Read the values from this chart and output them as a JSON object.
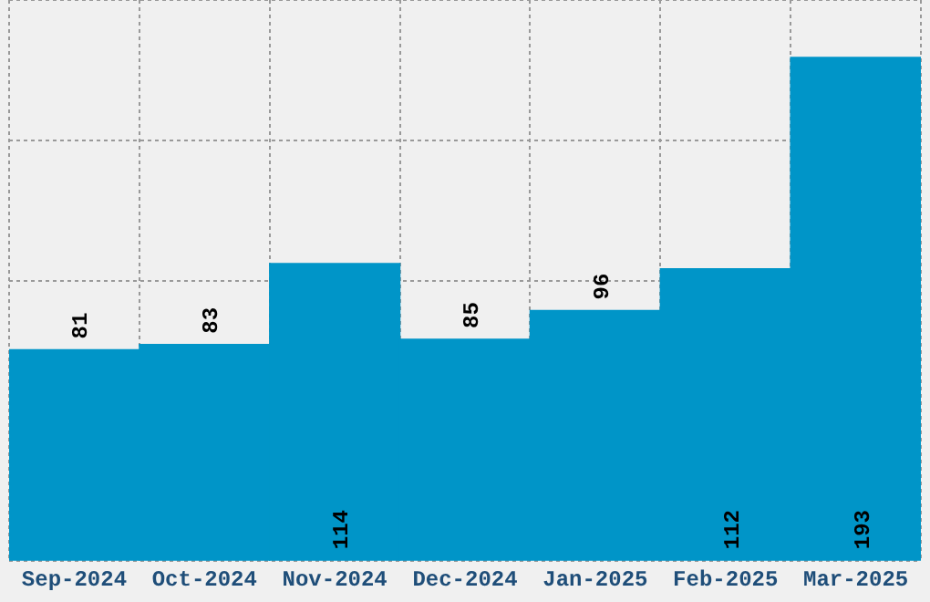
{
  "chart_data": {
    "type": "bar",
    "categories": [
      "Sep-2024",
      "Oct-2024",
      "Nov-2024",
      "Dec-2024",
      "Jan-2025",
      "Feb-2025",
      "Mar-2025"
    ],
    "values": [
      81,
      83,
      114,
      85,
      96,
      112,
      193
    ],
    "color": "#0095c8",
    "ylim": [
      0,
      215
    ],
    "grid": true,
    "data_labels": true,
    "tick_labels": "x"
  }
}
